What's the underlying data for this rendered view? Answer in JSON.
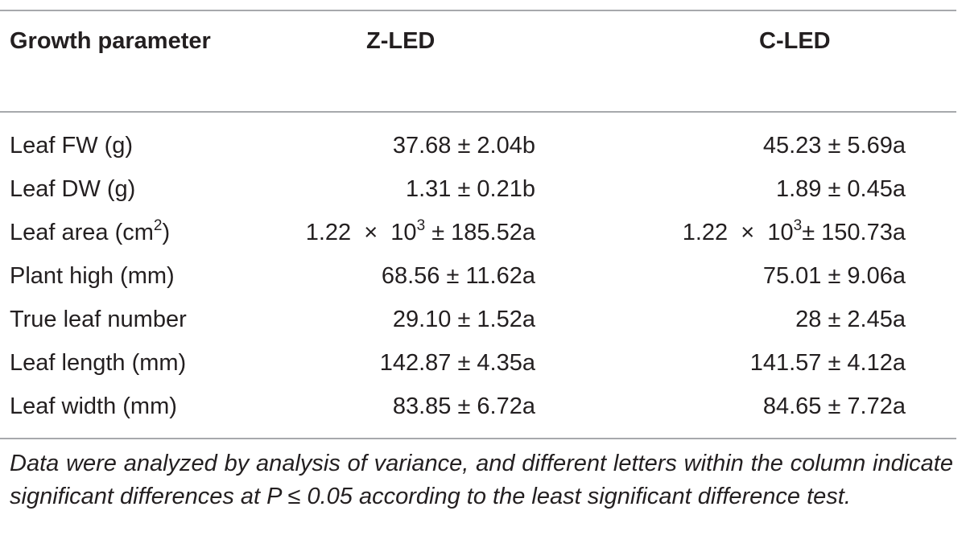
{
  "table": {
    "headers": {
      "parameter": "Growth parameter",
      "col1": "Z-LED",
      "col2": "C-LED"
    },
    "rows": [
      {
        "name": "Leaf FW (g)",
        "z": "37.68 ± 2.04b",
        "c": "45.23 ± 5.69a"
      },
      {
        "name": "Leaf DW (g)",
        "z": "1.31 ± 0.21b",
        "c": "1.89 ± 0.45a"
      },
      {
        "name_pre": "Leaf area (cm",
        "name_sup": "2",
        "name_post": ")",
        "z_pre": "1.22  ×  10",
        "z_sup": "3",
        "z_post": " ± 185.52a",
        "c_pre": "1.22  ×  10",
        "c_sup": "3",
        "c_post": "± 150.73a"
      },
      {
        "name": "Plant high (mm)",
        "z": "68.56 ± 11.62a",
        "c": "75.01 ± 9.06a"
      },
      {
        "name": "True leaf number",
        "z": "29.10 ± 1.52a",
        "c": "28 ± 2.45a"
      },
      {
        "name": "Leaf length (mm)",
        "z": "142.87 ± 4.35a",
        "c": "141.57 ± 4.12a"
      },
      {
        "name": "Leaf width (mm)",
        "z": "83.85 ± 6.72a",
        "c": "84.65 ± 7.72a"
      }
    ],
    "footnote": "Data were analyzed by analysis of variance, and different letters within the column indicate significant differences at P ≤ 0.05 according to the least significant difference test."
  }
}
